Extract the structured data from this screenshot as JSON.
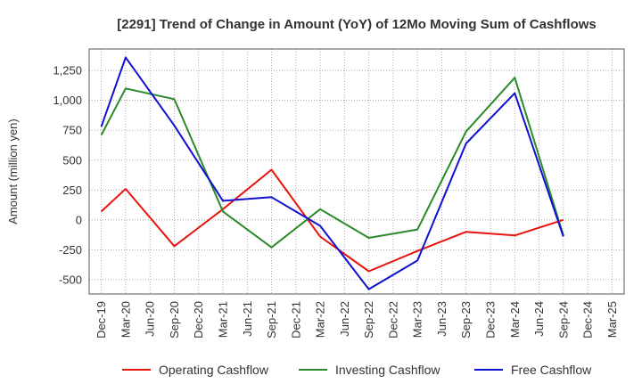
{
  "chart_data": {
    "type": "line",
    "title": "[2291]  Trend of Change in Amount (YoY) of 12Mo Moving Sum of Cashflows",
    "xlabel": "",
    "ylabel": "Amount (million yen)",
    "ylim": [
      -620,
      1430
    ],
    "yticks": [
      -500,
      -250,
      0,
      250,
      500,
      750,
      1000,
      1250
    ],
    "ytick_labels": [
      "-500",
      "-250",
      "0",
      "250",
      "500",
      "750",
      "1,000",
      "1,250"
    ],
    "categories": [
      "Dec-19",
      "Mar-20",
      "Jun-20",
      "Sep-20",
      "Dec-20",
      "Mar-21",
      "Jun-21",
      "Sep-21",
      "Dec-21",
      "Mar-22",
      "Jun-22",
      "Sep-22",
      "Dec-22",
      "Mar-23",
      "Jun-23",
      "Sep-23",
      "Dec-23",
      "Mar-24",
      "Jun-24",
      "Sep-24",
      "Dec-24",
      "Mar-25"
    ],
    "grid": true,
    "legend_position": "bottom",
    "series": [
      {
        "name": "Operating Cashflow",
        "color": "#e8140e",
        "values": [
          70,
          260,
          null,
          -220,
          null,
          90,
          null,
          420,
          null,
          -140,
          null,
          -430,
          null,
          -260,
          null,
          -100,
          null,
          -130,
          null,
          0,
          null,
          null
        ]
      },
      {
        "name": "Investing Cashflow",
        "color": "#2a8a2a",
        "values": [
          710,
          1100,
          null,
          1010,
          null,
          70,
          null,
          -230,
          null,
          90,
          null,
          -150,
          null,
          -80,
          null,
          740,
          null,
          1190,
          null,
          -130,
          null,
          null
        ]
      },
      {
        "name": "Free Cashflow",
        "color": "#1010d0",
        "values": [
          780,
          1360,
          null,
          790,
          null,
          160,
          null,
          190,
          null,
          -50,
          null,
          -580,
          null,
          -340,
          null,
          640,
          null,
          1060,
          null,
          -140,
          null,
          null
        ]
      }
    ]
  }
}
